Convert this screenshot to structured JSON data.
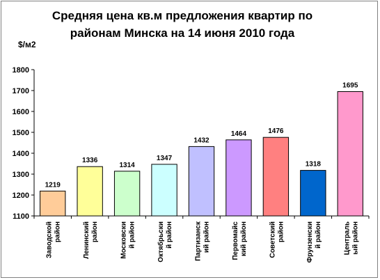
{
  "chart_data": {
    "type": "bar",
    "title": "Средняя цена кв.м предложения квартир по районам Минска на 14 июня 2010 года",
    "ylabel": "$/м2",
    "xlabel": "",
    "ylim": [
      1100,
      1800
    ],
    "ytick_step": 100,
    "grid": false,
    "legend": "none",
    "categories": [
      "Заводской район",
      "Ленинский район",
      "Московский район",
      "Октябрьский район",
      "Партизанский район",
      "Первомайский район",
      "Советский район",
      "Фрунзенский район",
      "Центральный район"
    ],
    "category_lines": [
      [
        "Заводской",
        "район"
      ],
      [
        "Ленинский",
        "район"
      ],
      [
        "Московски",
        "й район"
      ],
      [
        "Октябрьски",
        "й район"
      ],
      [
        "Партизанск",
        "ий район"
      ],
      [
        "Первомайс",
        "кий район"
      ],
      [
        "Советский",
        "район"
      ],
      [
        "Фрунзенски",
        "й район"
      ],
      [
        "Централь",
        "ый район"
      ]
    ],
    "values": [
      1219,
      1336,
      1314,
      1347,
      1432,
      1464,
      1476,
      1318,
      1695
    ],
    "colors": [
      "#FFCC99",
      "#FFFF99",
      "#CCFFCC",
      "#CCFFFF",
      "#C0C0FF",
      "#CC99FF",
      "#FF8080",
      "#0066CC",
      "#FF99CC"
    ]
  }
}
